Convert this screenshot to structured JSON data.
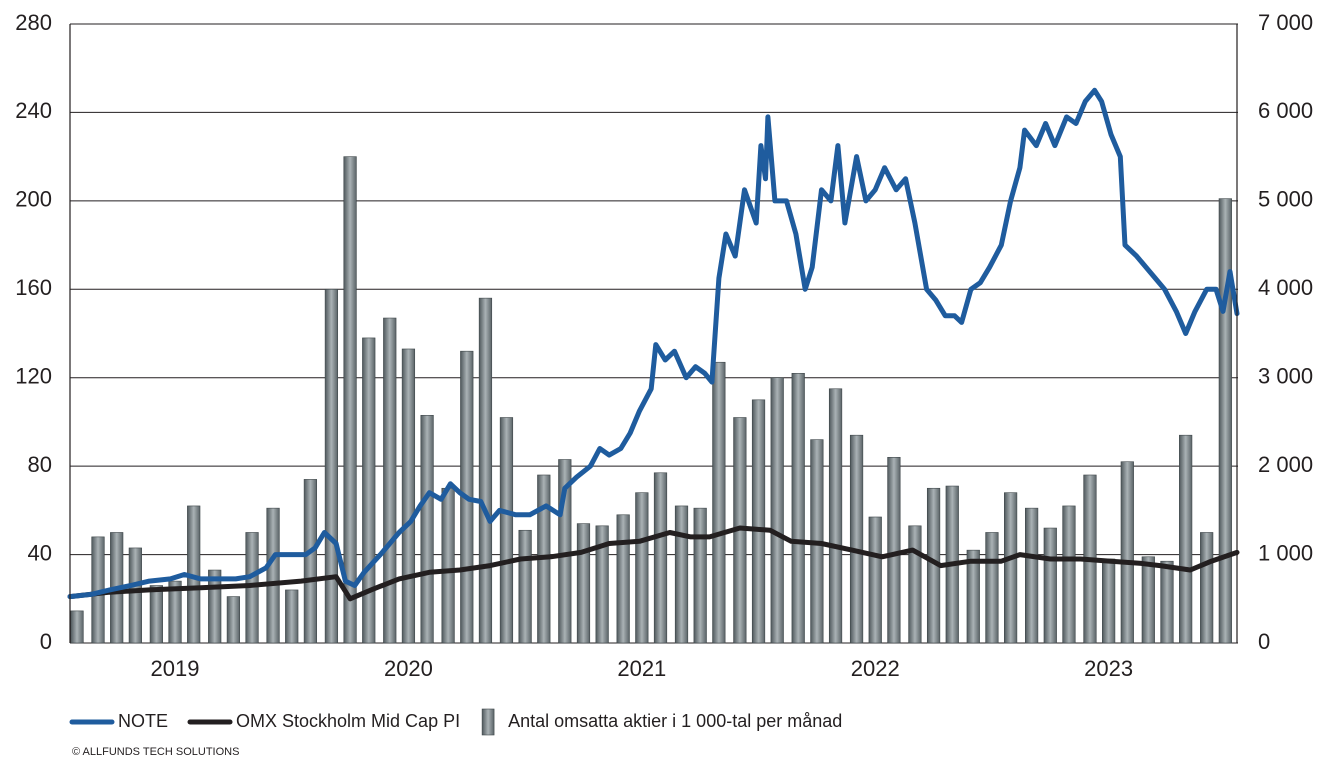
{
  "chart_data": {
    "type": "bar-line",
    "note": "© ALLFUNDS TECH SOLUTIONS",
    "xlim": [
      2019.05,
      2024.05
    ],
    "xticks": [
      {
        "value": 2019.5,
        "label": "2019"
      },
      {
        "value": 2020.5,
        "label": "2020"
      },
      {
        "value": 2021.5,
        "label": "2021"
      },
      {
        "value": 2022.5,
        "label": "2022"
      },
      {
        "value": 2023.5,
        "label": "2023"
      }
    ],
    "ylim": [
      0,
      280
    ],
    "yticks": [
      0,
      40,
      80,
      120,
      160,
      200,
      240,
      280
    ],
    "y2lim": [
      0,
      7000
    ],
    "y2ticks": [
      0,
      {
        "value": 1000,
        "label": "1 000"
      },
      {
        "value": 2000,
        "label": "2 000"
      },
      {
        "value": 3000,
        "label": "3 000"
      },
      {
        "value": 4000,
        "label": "4 000"
      },
      {
        "value": 5000,
        "label": "5 000"
      },
      {
        "value": 6000,
        "label": "6 000"
      },
      {
        "value": 7000,
        "label": "7 000"
      }
    ],
    "grid": true,
    "series": [
      {
        "name": "NOTE",
        "type": "line",
        "color": "#1f5c9e",
        "x": [
          2019.05,
          2019.14,
          2019.22,
          2019.31,
          2019.39,
          2019.48,
          2019.54,
          2019.61,
          2019.67,
          2019.76,
          2019.82,
          2019.89,
          2019.93,
          2019.99,
          2020.06,
          2020.1,
          2020.14,
          2020.19,
          2020.23,
          2020.27,
          2020.31,
          2020.38,
          2020.42,
          2020.46,
          2020.51,
          2020.55,
          2020.59,
          2020.64,
          2020.68,
          2020.72,
          2020.76,
          2020.81,
          2020.85,
          2020.89,
          2020.96,
          2021.02,
          2021.09,
          2021.15,
          2021.17,
          2021.22,
          2021.28,
          2021.32,
          2021.36,
          2021.41,
          2021.45,
          2021.49,
          2021.54,
          2021.56,
          2021.6,
          2021.64,
          2021.69,
          2021.73,
          2021.77,
          2021.8,
          2021.83,
          2021.86,
          2021.9,
          2021.94,
          2021.99,
          2022.01,
          2022.03,
          2022.04,
          2022.07,
          2022.12,
          2022.16,
          2022.2,
          2022.23,
          2022.27,
          2022.31,
          2022.34,
          2022.37,
          2022.42,
          2022.46,
          2022.5,
          2022.54,
          2022.59,
          2022.63,
          2022.67,
          2022.72,
          2022.76,
          2022.8,
          2022.84,
          2022.87,
          2022.91,
          2022.95,
          2022.99,
          2023.04,
          2023.08,
          2023.12,
          2023.14,
          2023.19,
          2023.23,
          2023.27,
          2023.32,
          2023.36,
          2023.4,
          2023.44,
          2023.47,
          2023.51,
          2023.55,
          2023.57,
          2023.62,
          2023.66,
          2023.7,
          2023.74,
          2023.79,
          2023.83,
          2023.87,
          2023.92,
          2023.96,
          2023.99,
          2024.02,
          2024.05
        ],
        "values": [
          21,
          22,
          24,
          26,
          28,
          29,
          31,
          29,
          29,
          29,
          30,
          34,
          40,
          40,
          40,
          43,
          50,
          45,
          28,
          26,
          32,
          40,
          45,
          50,
          55,
          62,
          68,
          65,
          72,
          68,
          65,
          64,
          55,
          60,
          58,
          58,
          62,
          58,
          70,
          75,
          80,
          88,
          85,
          88,
          95,
          105,
          115,
          135,
          128,
          132,
          120,
          125,
          122,
          118,
          165,
          185,
          175,
          205,
          190,
          225,
          210,
          238,
          200,
          200,
          185,
          160,
          170,
          205,
          200,
          225,
          190,
          220,
          200,
          205,
          215,
          205,
          210,
          190,
          160,
          155,
          148,
          148,
          145,
          160,
          163,
          170,
          180,
          200,
          215,
          232,
          225,
          235,
          225,
          238,
          235,
          245,
          250,
          245,
          230,
          220,
          180,
          175,
          170,
          165,
          160,
          150,
          140,
          150,
          160,
          160,
          150,
          168,
          149
        ]
      },
      {
        "name": "OMX Stockholm Mid Cap PI",
        "type": "line",
        "color": "#231f20",
        "x": [
          2019.05,
          2019.22,
          2019.39,
          2019.61,
          2019.82,
          2020.04,
          2020.19,
          2020.25,
          2020.34,
          2020.46,
          2020.59,
          2020.72,
          2020.85,
          2020.98,
          2021.11,
          2021.24,
          2021.36,
          2021.49,
          2021.62,
          2021.71,
          2021.79,
          2021.92,
          2022.05,
          2022.14,
          2022.27,
          2022.4,
          2022.53,
          2022.66,
          2022.78,
          2022.91,
          2023.04,
          2023.12,
          2023.25,
          2023.38,
          2023.51,
          2023.64,
          2023.72,
          2023.85,
          2023.94,
          2024.05
        ],
        "values": [
          21,
          23,
          24,
          25,
          26,
          28,
          30,
          20,
          24,
          29,
          32,
          33,
          35,
          38,
          39,
          41,
          45,
          46,
          50,
          48,
          48,
          52,
          51,
          46,
          45,
          42,
          39,
          42,
          35,
          37,
          37,
          40,
          38,
          38,
          37,
          36,
          35,
          33,
          37,
          41
        ]
      },
      {
        "name": "Antal omsatta aktier i 1 000-tal per månad",
        "type": "bar",
        "axis": "y2",
        "color": "#aab2b5",
        "x": [
          2019.08,
          2019.17,
          2019.25,
          2019.33,
          2019.42,
          2019.5,
          2019.58,
          2019.67,
          2019.75,
          2019.83,
          2019.92,
          2020.0,
          2020.08,
          2020.17,
          2020.25,
          2020.33,
          2020.42,
          2020.5,
          2020.58,
          2020.67,
          2020.75,
          2020.83,
          2020.92,
          2021.0,
          2021.08,
          2021.17,
          2021.25,
          2021.33,
          2021.42,
          2021.5,
          2021.58,
          2021.67,
          2021.75,
          2021.83,
          2021.92,
          2022.0,
          2022.08,
          2022.17,
          2022.25,
          2022.33,
          2022.42,
          2022.5,
          2022.58,
          2022.67,
          2022.75,
          2022.83,
          2022.92,
          2023.0,
          2023.08,
          2023.17,
          2023.25,
          2023.33,
          2023.42,
          2023.5,
          2023.58,
          2023.67,
          2023.75,
          2023.83,
          2023.92,
          2024.0
        ],
        "values": [
          363,
          1200,
          1250,
          1075,
          650,
          700,
          1550,
          825,
          525,
          1250,
          1525,
          600,
          1850,
          4000,
          5500,
          3450,
          3675,
          3325,
          2575,
          1750,
          3300,
          3900,
          2550,
          1275,
          1900,
          2075,
          1350,
          1325,
          1450,
          1700,
          1925,
          1550,
          1525,
          3175,
          2550,
          2750,
          3000,
          3050,
          2300,
          2875,
          2350,
          1425,
          2100,
          1325,
          1750,
          1775,
          1050,
          1250,
          1700,
          1525,
          1300,
          1550,
          1900,
          950,
          2050,
          975,
          925,
          2350,
          1250,
          5025
        ]
      }
    ]
  }
}
